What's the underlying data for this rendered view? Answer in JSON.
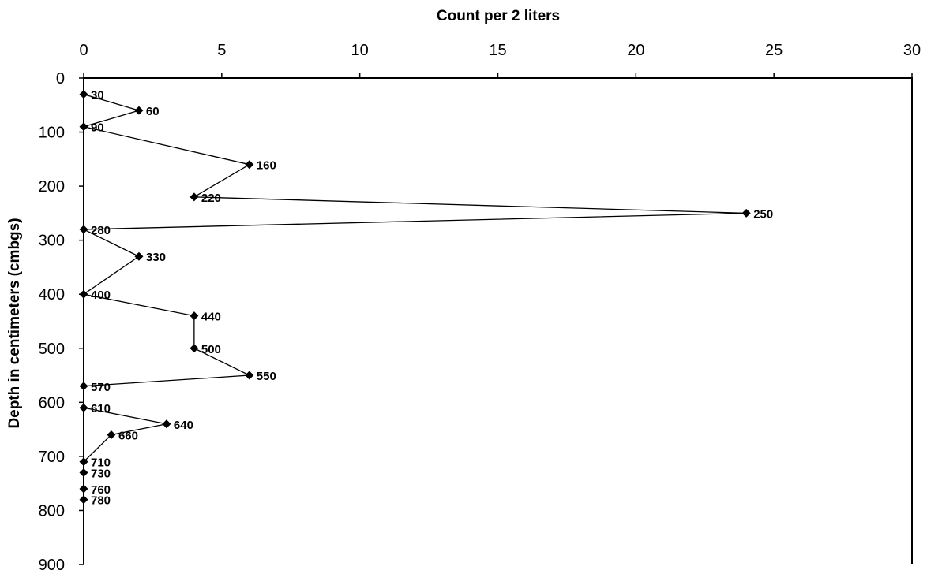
{
  "chart_data": {
    "type": "line",
    "title": "",
    "xlabel": "Count per 2 liters",
    "ylabel": "Depth in centimeters (cmbgs)",
    "xlim": [
      0,
      30
    ],
    "ylim": [
      0,
      900
    ],
    "y_inverted": true,
    "x_axis_position": "top",
    "x_ticks": [
      "0",
      "5",
      "10",
      "15",
      "20",
      "25",
      "30"
    ],
    "y_ticks": [
      "0",
      "100",
      "200",
      "300",
      "400",
      "500",
      "600",
      "700",
      "800",
      "900"
    ],
    "grid": false,
    "legend": "none",
    "marker": "diamond",
    "series_color": "#000000",
    "series": [
      {
        "points": [
          {
            "depth": 30,
            "count": 0,
            "label": "30"
          },
          {
            "depth": 60,
            "count": 2,
            "label": "60"
          },
          {
            "depth": 90,
            "count": 0,
            "label": "90"
          },
          {
            "depth": 160,
            "count": 6,
            "label": "160"
          },
          {
            "depth": 220,
            "count": 4,
            "label": "220"
          },
          {
            "depth": 250,
            "count": 24,
            "label": "250"
          },
          {
            "depth": 280,
            "count": 0,
            "label": "280"
          },
          {
            "depth": 330,
            "count": 2,
            "label": "330"
          },
          {
            "depth": 400,
            "count": 0,
            "label": "400"
          },
          {
            "depth": 440,
            "count": 4,
            "label": "440"
          },
          {
            "depth": 500,
            "count": 4,
            "label": "500"
          },
          {
            "depth": 550,
            "count": 6,
            "label": "550"
          },
          {
            "depth": 570,
            "count": 0,
            "label": "570"
          },
          {
            "depth": 610,
            "count": 0,
            "label": "610"
          },
          {
            "depth": 640,
            "count": 3,
            "label": "640"
          },
          {
            "depth": 660,
            "count": 1,
            "label": "660"
          },
          {
            "depth": 710,
            "count": 0,
            "label": "710"
          },
          {
            "depth": 730,
            "count": 0,
            "label": "730"
          },
          {
            "depth": 760,
            "count": 0,
            "label": "760"
          },
          {
            "depth": 780,
            "count": 0,
            "label": "780"
          }
        ]
      }
    ]
  }
}
